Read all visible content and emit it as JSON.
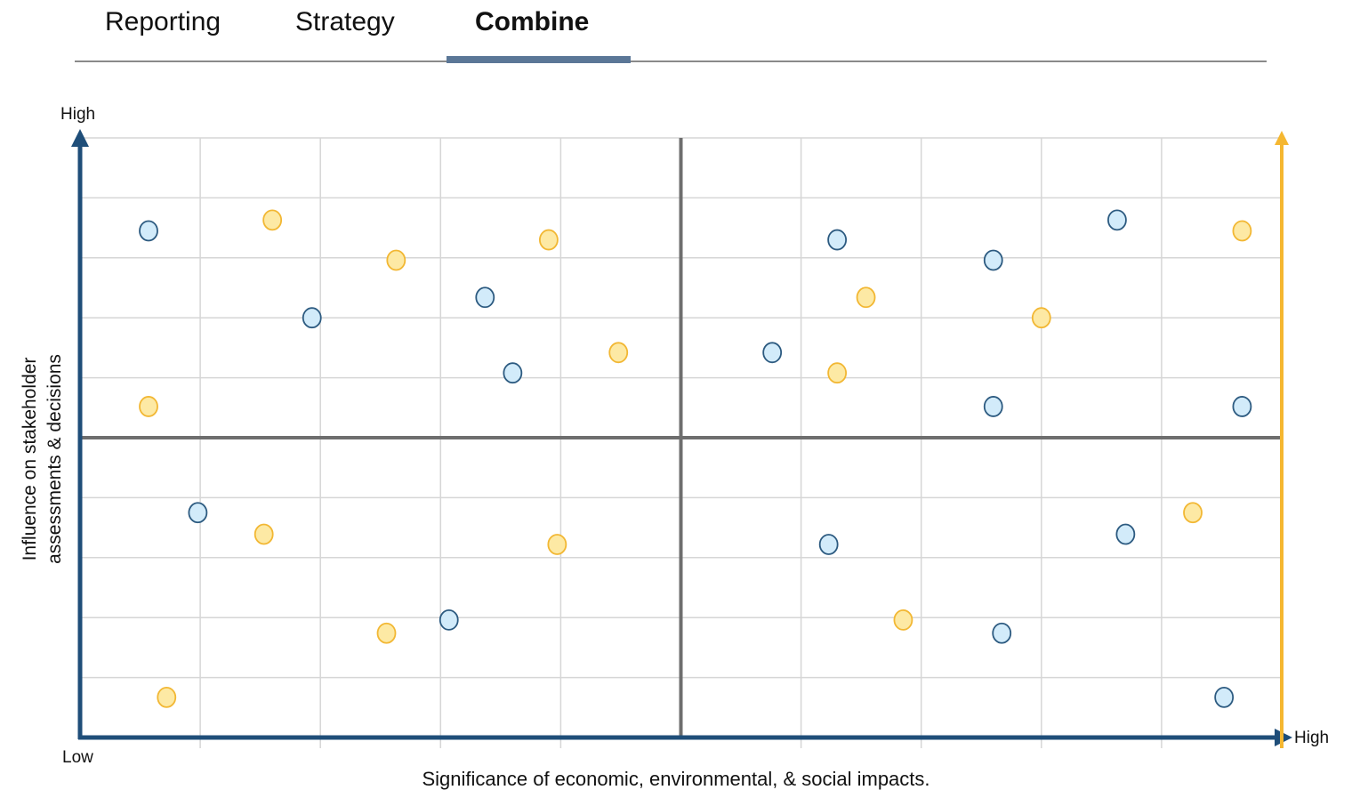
{
  "tabs": [
    {
      "label": "Reporting",
      "active": false
    },
    {
      "label": "Strategy",
      "active": false
    },
    {
      "label": "Combine",
      "active": true
    }
  ],
  "colors": {
    "tab_indicator": "#5b7797",
    "grid": "#d6d6d6",
    "quadrant_lines": "#6e6e6e",
    "axis_primary": "#1f4e79",
    "axis_secondary": "#f5b731",
    "series_blue_fill": "#d2ebfa",
    "series_blue_stroke": "#2c5a80",
    "series_yellow_fill": "#fde9a4",
    "series_yellow_stroke": "#f2b733"
  },
  "chart_data": {
    "type": "scatter",
    "xlabel": "Significance of economic, environmental, & social impacts.",
    "ylabel_lines": [
      "Influence on stakeholder",
      "assessments & decisions"
    ],
    "y_high_label": "High",
    "origin_label": "Low",
    "x_high_label": "High",
    "xlim": [
      0,
      10
    ],
    "ylim": [
      0,
      10
    ],
    "grid": true,
    "quadrant_dividers": {
      "x": 5,
      "y": 5
    },
    "series": [
      {
        "color": "blue",
        "points": [
          {
            "x": 0.57,
            "y": 8.45
          },
          {
            "x": 1.93,
            "y": 7.0
          },
          {
            "x": 3.37,
            "y": 7.34
          },
          {
            "x": 3.6,
            "y": 6.08
          },
          {
            "x": 0.98,
            "y": 3.75
          },
          {
            "x": 3.07,
            "y": 1.96
          },
          {
            "x": 6.3,
            "y": 8.3
          },
          {
            "x": 7.6,
            "y": 7.96
          },
          {
            "x": 8.63,
            "y": 8.63
          },
          {
            "x": 5.76,
            "y": 6.42
          },
          {
            "x": 7.6,
            "y": 5.52
          },
          {
            "x": 9.67,
            "y": 5.52
          },
          {
            "x": 6.23,
            "y": 3.22
          },
          {
            "x": 8.7,
            "y": 3.39
          },
          {
            "x": 7.67,
            "y": 1.74
          },
          {
            "x": 9.52,
            "y": 0.67
          }
        ]
      },
      {
        "color": "yellow",
        "points": [
          {
            "x": 1.6,
            "y": 8.63
          },
          {
            "x": 2.63,
            "y": 7.96
          },
          {
            "x": 3.9,
            "y": 8.3
          },
          {
            "x": 4.48,
            "y": 6.42
          },
          {
            "x": 0.57,
            "y": 5.52
          },
          {
            "x": 1.53,
            "y": 3.39
          },
          {
            "x": 3.97,
            "y": 3.22
          },
          {
            "x": 2.55,
            "y": 1.74
          },
          {
            "x": 0.72,
            "y": 0.67
          },
          {
            "x": 6.54,
            "y": 7.34
          },
          {
            "x": 6.3,
            "y": 6.08
          },
          {
            "x": 8.0,
            "y": 7.0
          },
          {
            "x": 9.67,
            "y": 8.45
          },
          {
            "x": 9.26,
            "y": 3.75
          },
          {
            "x": 6.85,
            "y": 1.96
          }
        ]
      }
    ]
  }
}
